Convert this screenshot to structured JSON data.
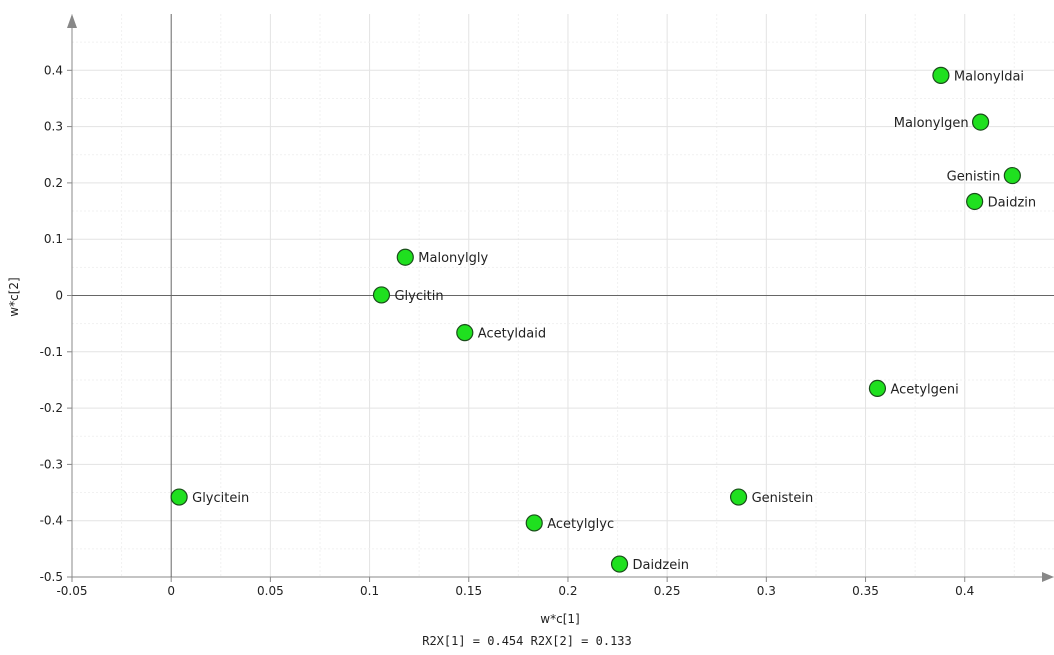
{
  "chart_data": {
    "type": "scatter",
    "xlabel": "w*c[1]",
    "ylabel": "w*c[2]",
    "xlim": [
      -0.05,
      0.445
    ],
    "ylim": [
      -0.5,
      0.5
    ],
    "x_ticks": [
      "-0.05",
      "0",
      "0.05",
      "0.1",
      "0.15",
      "0.2",
      "0.25",
      "0.3",
      "0.35",
      "0.4"
    ],
    "y_ticks": [
      "-0.5",
      "-0.4",
      "-0.3",
      "-0.2",
      "-0.1",
      "0",
      "0.1",
      "0.2",
      "0.3",
      "0.4"
    ],
    "grid": true,
    "marker_color": "#1fe01f",
    "marker_edge": "#1a4d1a",
    "points": [
      {
        "label": "Malonyldai",
        "x": 0.388,
        "y": 0.391,
        "label_side": "right"
      },
      {
        "label": "Malonylgen",
        "x": 0.408,
        "y": 0.308,
        "label_side": "left"
      },
      {
        "label": "Genistin",
        "x": 0.424,
        "y": 0.213,
        "label_side": "left"
      },
      {
        "label": "Daidzin",
        "x": 0.405,
        "y": 0.167,
        "label_side": "right"
      },
      {
        "label": "Malonylgly",
        "x": 0.118,
        "y": 0.068,
        "label_side": "right"
      },
      {
        "label": "Glycitin",
        "x": 0.106,
        "y": 0.001,
        "label_side": "right"
      },
      {
        "label": "Acetyldaid",
        "x": 0.148,
        "y": -0.066,
        "label_side": "right"
      },
      {
        "label": "Acetylgeni",
        "x": 0.356,
        "y": -0.165,
        "label_side": "right"
      },
      {
        "label": "Glycitein",
        "x": 0.004,
        "y": -0.358,
        "label_side": "right"
      },
      {
        "label": "Genistein",
        "x": 0.286,
        "y": -0.358,
        "label_side": "right"
      },
      {
        "label": "Acetylglyc",
        "x": 0.183,
        "y": -0.404,
        "label_side": "right"
      },
      {
        "label": "Daidzein",
        "x": 0.226,
        "y": -0.477,
        "label_side": "right"
      }
    ]
  },
  "footer": {
    "text": "R2X[1] = 0.454 R2X[2] = 0.133"
  }
}
